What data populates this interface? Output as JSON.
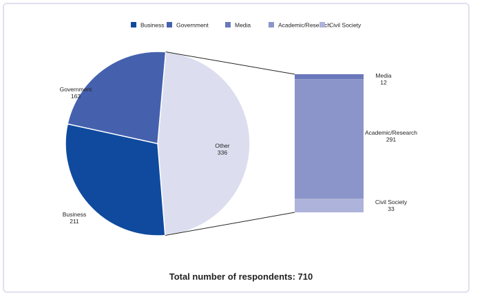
{
  "chart_data": {
    "type": "pie-of-bar",
    "legend": [
      "Business",
      "Government",
      "Media",
      "Academic/Research",
      "Civil Society"
    ],
    "legend_position": "top",
    "pie": [
      {
        "label": "Other",
        "value": 336,
        "color": "#dcdeef"
      },
      {
        "label": "Business",
        "value": 211,
        "color": "#0f4a9e"
      },
      {
        "label": "Government",
        "value": 163,
        "color": "#4561ae"
      }
    ],
    "bar": [
      {
        "label": "Media",
        "value": 12,
        "color": "#6a78bb"
      },
      {
        "label": "Academic/Research",
        "value": 291,
        "color": "#8b95c9"
      },
      {
        "label": "Civil Society",
        "value": 33,
        "color": "#aeb3db"
      }
    ],
    "footer": "Total number of respondents: 710"
  }
}
